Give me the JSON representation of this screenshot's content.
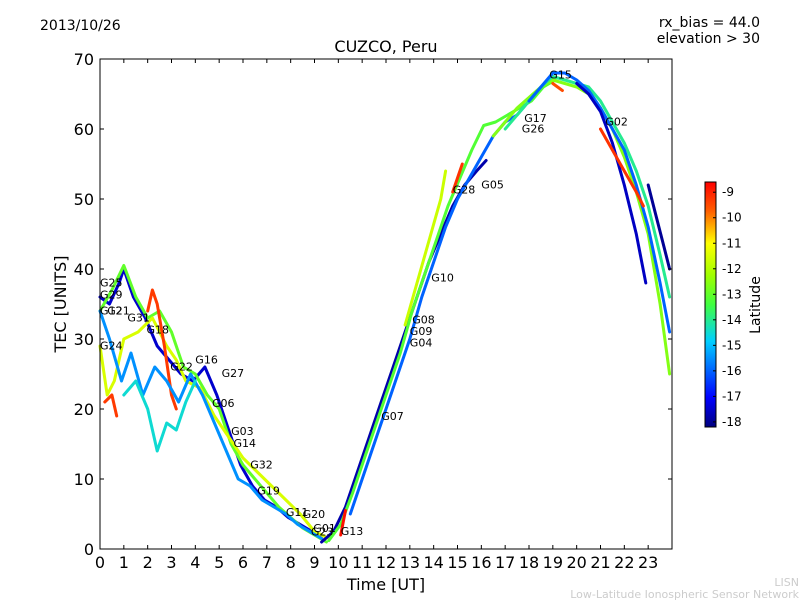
{
  "date": "2013/10/26",
  "bias_line1": "rx_bias = 44.0",
  "bias_line2": "elevation > 30",
  "credit_line1": "LISN",
  "credit_line2": "Low-Latitude Ionospheric Sensor Network",
  "chart_data": {
    "type": "line",
    "title": "CUZCO, Peru",
    "xlabel": "Time [UT]",
    "ylabel": "TEC [UNITS]",
    "xlim": [
      0,
      24
    ],
    "ylim": [
      0,
      70
    ],
    "xticks": [
      "0",
      "1",
      "2",
      "3",
      "4",
      "5",
      "6",
      "7",
      "8",
      "9",
      "10",
      "11",
      "12",
      "13",
      "14",
      "15",
      "16",
      "17",
      "18",
      "19",
      "20",
      "21",
      "22",
      "23"
    ],
    "yticks": [
      "0",
      "10",
      "20",
      "30",
      "40",
      "50",
      "60",
      "70"
    ],
    "colorbar": {
      "label": "Latitude",
      "min": -18.2,
      "max": -8.6,
      "ticks": [
        "-9",
        "-10",
        "-11",
        "-12",
        "-13",
        "-14",
        "-15",
        "-16",
        "-17",
        "-18"
      ],
      "tick_values": [
        -9,
        -10,
        -11,
        -12,
        -13,
        -14,
        -15,
        -16,
        -17,
        -18
      ]
    },
    "satellite_labels": [
      {
        "name": "G25",
        "t": 0.0,
        "tec": 37.5
      },
      {
        "name": "G29",
        "t": 0.0,
        "tec": 35.8
      },
      {
        "name": "G12",
        "t": 0.0,
        "tec": 33.5
      },
      {
        "name": "G21",
        "t": 0.3,
        "tec": 33.5
      },
      {
        "name": "G24",
        "t": 0.0,
        "tec": 28.5
      },
      {
        "name": "G31",
        "t": 1.15,
        "tec": 32.5
      },
      {
        "name": "G18",
        "t": 1.95,
        "tec": 30.8
      },
      {
        "name": "G22",
        "t": 2.95,
        "tec": 25.5
      },
      {
        "name": "G16",
        "t": 4.0,
        "tec": 26.5
      },
      {
        "name": "G27",
        "t": 5.1,
        "tec": 24.6
      },
      {
        "name": "G06",
        "t": 4.7,
        "tec": 20.3
      },
      {
        "name": "G03",
        "t": 5.5,
        "tec": 16.3
      },
      {
        "name": "G14",
        "t": 5.6,
        "tec": 14.6
      },
      {
        "name": "G32",
        "t": 6.3,
        "tec": 11.5
      },
      {
        "name": "G19",
        "t": 6.6,
        "tec": 7.8
      },
      {
        "name": "G11",
        "t": 7.8,
        "tec": 4.7
      },
      {
        "name": "G20",
        "t": 8.5,
        "tec": 4.4
      },
      {
        "name": "G01",
        "t": 8.95,
        "tec": 2.4
      },
      {
        "name": "G23",
        "t": 8.85,
        "tec": 1.9
      },
      {
        "name": "G13",
        "t": 10.1,
        "tec": 2.0
      },
      {
        "name": "G07",
        "t": 11.8,
        "tec": 18.4
      },
      {
        "name": "G04",
        "t": 13.0,
        "tec": 28.9
      },
      {
        "name": "G09",
        "t": 13.0,
        "tec": 30.6
      },
      {
        "name": "G08",
        "t": 13.1,
        "tec": 32.2
      },
      {
        "name": "G10",
        "t": 13.9,
        "tec": 38.2
      },
      {
        "name": "G28",
        "t": 14.8,
        "tec": 50.8
      },
      {
        "name": "G05",
        "t": 16.0,
        "tec": 51.5
      },
      {
        "name": "G17",
        "t": 17.8,
        "tec": 61.0
      },
      {
        "name": "G26",
        "t": 17.7,
        "tec": 59.5
      },
      {
        "name": "G15",
        "t": 18.85,
        "tec": 67.2
      },
      {
        "name": "G02",
        "t": 21.2,
        "tec": 60.5
      }
    ],
    "series": [
      {
        "name": "night-a",
        "lat": -17.5,
        "x": [
          0.0,
          0.4,
          0.8,
          1.0,
          1.4,
          1.9,
          2.4,
          2.9,
          3.4,
          3.9,
          4.4,
          4.9,
          5.4,
          5.9,
          6.4,
          6.9,
          7.4,
          7.9,
          8.4,
          8.9,
          9.3
        ],
        "y": [
          36,
          35,
          38,
          40,
          36,
          33,
          29,
          27,
          25,
          24,
          26,
          22,
          17,
          12,
          9,
          7,
          6,
          4.5,
          3.5,
          2.5,
          1.5
        ]
      },
      {
        "name": "night-b",
        "lat": -13.0,
        "x": [
          0.0,
          0.5,
          1.0,
          1.5,
          2.0,
          2.5,
          3.0,
          3.5,
          4.0,
          4.5,
          5.0,
          5.5,
          6.0,
          6.5,
          7.0,
          7.5,
          8.0,
          8.5,
          9.0,
          9.5
        ],
        "y": [
          34,
          37,
          40.5,
          36,
          33,
          34,
          31,
          26,
          25,
          22,
          20,
          15,
          12,
          10,
          8,
          6,
          4.5,
          3,
          2,
          1
        ]
      },
      {
        "name": "night-c",
        "lat": -11.5,
        "x": [
          0.0,
          0.3,
          0.6,
          1.0,
          1.6,
          2.2,
          2.8,
          3.2,
          3.6,
          4.2,
          4.8,
          5.4,
          6.0,
          6.6,
          7.2,
          7.8,
          8.4,
          9.0,
          9.6
        ],
        "y": [
          29,
          22,
          24,
          30,
          31,
          33,
          29,
          27,
          24,
          23,
          19,
          16,
          13,
          11,
          9,
          7,
          5,
          2.5,
          1.5
        ]
      },
      {
        "name": "night-d",
        "lat": -9.3,
        "x": [
          0.2,
          0.5,
          0.7
        ],
        "y": [
          21,
          22,
          19
        ]
      },
      {
        "name": "night-e",
        "lat": -9.3,
        "x": [
          2.0,
          2.2,
          2.4,
          2.7,
          3.0,
          3.2
        ],
        "y": [
          34,
          37,
          35,
          29,
          22,
          20
        ]
      },
      {
        "name": "night-f",
        "lat": -15.5,
        "x": [
          0.0,
          0.4,
          0.9,
          1.3,
          1.8,
          2.3,
          2.8,
          3.3,
          3.8,
          4.3,
          4.8,
          5.3,
          5.8,
          6.3,
          6.8,
          7.3,
          7.8,
          8.3,
          8.8,
          9.3
        ],
        "y": [
          34,
          30,
          24,
          28,
          22,
          26,
          24,
          21,
          25,
          22,
          18,
          14,
          10,
          9,
          7,
          6,
          5,
          3.5,
          2.5,
          1.5
        ]
      },
      {
        "name": "night-g",
        "lat": -14.5,
        "x": [
          1.0,
          1.5,
          2.0,
          2.4,
          2.8,
          3.2,
          3.6,
          4.0
        ],
        "y": [
          22,
          24,
          20,
          14,
          18,
          17,
          21,
          24
        ]
      },
      {
        "name": "rise-1",
        "lat": -17.8,
        "x": [
          9.3,
          9.8,
          10.3,
          10.8,
          11.3,
          11.8,
          12.3,
          12.8,
          13.3,
          13.8,
          14.3,
          14.8,
          15.3,
          15.8,
          16.2
        ],
        "y": [
          1,
          2.5,
          6,
          11,
          16,
          21,
          26,
          31,
          36,
          41,
          45,
          49,
          52,
          54,
          55.5
        ]
      },
      {
        "name": "rise-2",
        "lat": -13.2,
        "x": [
          9.6,
          10.1,
          10.6,
          11.1,
          11.6,
          12.1,
          12.6,
          13.1,
          13.6,
          14.1,
          14.6,
          15.1,
          15.6,
          16.1,
          16.6,
          17.1,
          17.6,
          18.1,
          18.6,
          19.1
        ],
        "y": [
          1.2,
          3.5,
          8,
          13,
          18,
          23,
          28,
          34,
          39,
          44,
          49,
          53,
          57,
          60.5,
          61,
          62,
          63,
          64,
          66,
          67
        ]
      },
      {
        "name": "rise-3",
        "lat": -11.7,
        "x": [
          12.8,
          13.3,
          13.8,
          14.3,
          14.5
        ],
        "y": [
          32,
          38,
          44,
          50,
          54
        ]
      },
      {
        "name": "rise-4",
        "lat": -16.0,
        "x": [
          10.5,
          11.0,
          11.5,
          12.0,
          12.5,
          13.0,
          13.5,
          14.0,
          14.5,
          15.0,
          15.5,
          16.0,
          16.5,
          17.0,
          17.5,
          18.0,
          18.5,
          19.0
        ],
        "y": [
          5,
          10,
          15,
          20,
          25,
          30,
          36,
          41,
          46,
          50,
          53,
          56,
          59,
          61,
          62,
          64,
          66,
          67.5
        ]
      },
      {
        "name": "rise-5",
        "lat": -9.2,
        "x": [
          14.8,
          15.0,
          15.2
        ],
        "y": [
          51,
          53,
          55
        ]
      },
      {
        "name": "rise-6",
        "lat": -8.8,
        "x": [
          10.1,
          10.3
        ],
        "y": [
          2,
          5.5
        ]
      },
      {
        "name": "peak-1",
        "lat": -12.6,
        "x": [
          16.5,
          17.0,
          17.5,
          18.0,
          18.5,
          19.0,
          19.5,
          20.0,
          20.5,
          21.0,
          21.5,
          22.0,
          22.5,
          23.0,
          23.5,
          23.9
        ],
        "y": [
          59,
          61,
          63,
          64.5,
          66,
          67,
          66.5,
          66,
          65,
          63,
          60,
          56,
          51,
          45,
          35,
          25
        ]
      },
      {
        "name": "peak-2",
        "lat": -14.0,
        "x": [
          17.0,
          17.5,
          18.0,
          18.5,
          19.0,
          19.5,
          20.0,
          20.5,
          21.0,
          21.5,
          22.0,
          22.5,
          23.0,
          23.5,
          23.9
        ],
        "y": [
          60,
          62,
          64,
          66,
          67.5,
          67,
          66.5,
          66,
          64,
          61,
          58,
          54,
          49,
          42,
          36
        ]
      },
      {
        "name": "peak-3",
        "lat": -16.0,
        "x": [
          18.0,
          18.5,
          19.0,
          19.5,
          20.0,
          20.5,
          21.0,
          21.5,
          22.0,
          22.5,
          23.0,
          23.5,
          23.9
        ],
        "y": [
          64,
          66,
          68,
          68,
          67,
          65.5,
          63,
          60,
          57,
          52,
          46,
          38,
          31
        ]
      },
      {
        "name": "peak-4",
        "lat": -17.6,
        "x": [
          20.0,
          20.5,
          21.0,
          21.5,
          22.0,
          22.5,
          22.9
        ],
        "y": [
          66.5,
          65,
          62.5,
          58,
          52,
          45,
          38
        ]
      },
      {
        "name": "peak-5",
        "lat": -9.2,
        "x": [
          21.0,
          21.5,
          22.0,
          22.5,
          22.8
        ],
        "y": [
          60,
          57,
          54,
          51,
          49
        ]
      },
      {
        "name": "peak-6",
        "lat": -18.0,
        "x": [
          23.0,
          23.3,
          23.6,
          23.9
        ],
        "y": [
          52,
          48,
          44,
          40
        ]
      },
      {
        "name": "peak-7",
        "lat": -9.5,
        "x": [
          19.0,
          19.4
        ],
        "y": [
          66.5,
          65.5
        ]
      }
    ]
  }
}
